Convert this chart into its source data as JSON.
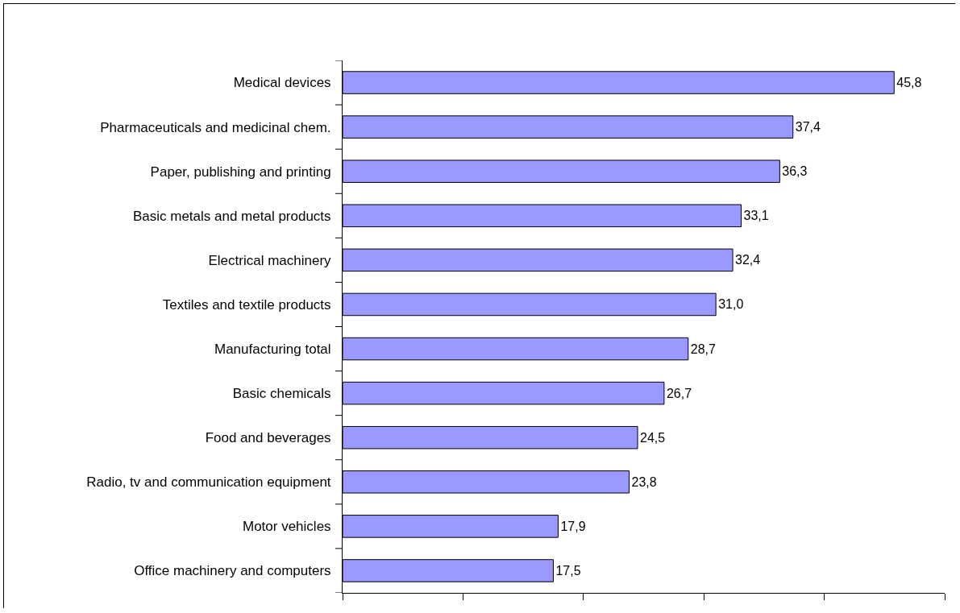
{
  "chart_data": {
    "type": "bar",
    "orientation": "horizontal",
    "categories": [
      "Medical devices",
      "Pharmaceuticals and medicinal chem.",
      "Paper, publishing and printing",
      "Basic metals and metal products",
      "Electrical machinery",
      "Textiles and textile products",
      "Manufacturing total",
      "Basic chemicals",
      "Food and beverages",
      "Radio, tv and communication equipment",
      "Motor vehicles",
      "Office machinery and computers"
    ],
    "values": [
      45.8,
      37.4,
      36.3,
      33.1,
      32.4,
      31.0,
      28.7,
      26.7,
      24.5,
      23.8,
      17.9,
      17.5
    ],
    "value_labels": [
      "45,8",
      "37,4",
      "36,3",
      "33,1",
      "32,4",
      "31,0",
      "28,7",
      "26,7",
      "24,5",
      "23,8",
      "17,9",
      "17,5"
    ],
    "color": "#9999ff",
    "xlim": [
      0,
      50
    ],
    "xticks": [
      {
        "value": 0,
        "label": null
      },
      {
        "value": 10,
        "label": null
      },
      {
        "value": 20,
        "label": null
      },
      {
        "value": 30,
        "label": null
      },
      {
        "value": 40,
        "label": null
      },
      {
        "value": 50,
        "label": null
      }
    ],
    "tick_labels": "y",
    "grid": false
  }
}
